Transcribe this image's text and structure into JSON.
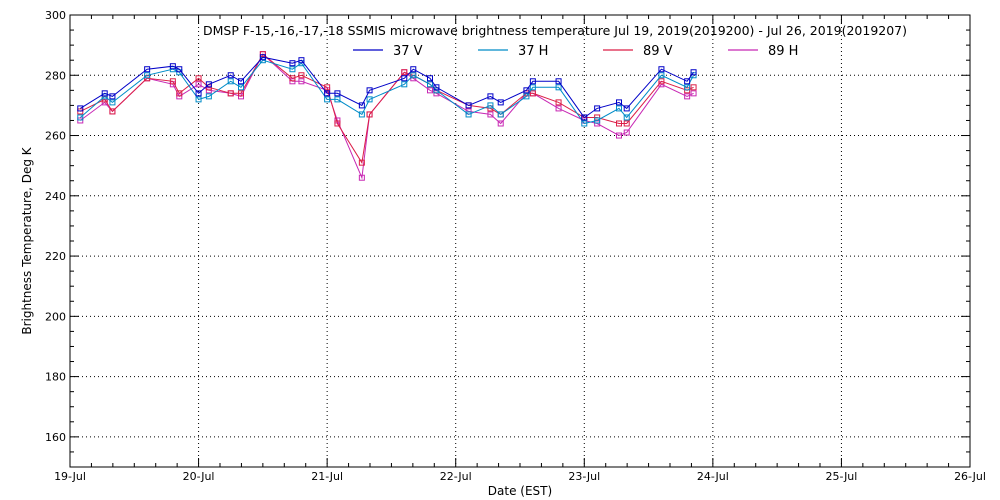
{
  "chart_data": {
    "type": "line",
    "title": "DMSP F-15,-16,-17,-18 SSMIS microwave brightness temperature Jul 19, 2019(2019200) - Jul 26, 2019(2019207)",
    "xlabel": "Date (EST)",
    "ylabel": "Brightness Temperature, Deg K",
    "xlim": [
      "19-Jul",
      "26-Jul"
    ],
    "ylim": [
      150,
      300
    ],
    "x_ticks": [
      "19-Jul",
      "20-Jul",
      "21-Jul",
      "22-Jul",
      "23-Jul",
      "24-Jul",
      "25-Jul",
      "26-Jul"
    ],
    "y_ticks": [
      160,
      180,
      200,
      220,
      240,
      260,
      280,
      300
    ],
    "grid": true,
    "legend_position": "top",
    "x_unit": "days after 19-Jul 00:00",
    "x": [
      0.08,
      0.27,
      0.33,
      0.6,
      0.8,
      0.85,
      1.0,
      1.08,
      1.25,
      1.33,
      1.5,
      1.73,
      1.8,
      2.0,
      2.08,
      2.27,
      2.33,
      2.6,
      2.67,
      2.8,
      2.85,
      3.1,
      3.27,
      3.35,
      3.55,
      3.6,
      3.8,
      4.0,
      4.1,
      4.27,
      4.33,
      4.6,
      4.8,
      4.85
    ],
    "series": [
      {
        "name": "37 V",
        "color": "#0000c8",
        "values": [
          269,
          274,
          273,
          282,
          283,
          282,
          274,
          277,
          280,
          278,
          286,
          284,
          285,
          274,
          274,
          270,
          275,
          279,
          282,
          279,
          276,
          270,
          273,
          271,
          275,
          278,
          278,
          266,
          269,
          271,
          269,
          282,
          278,
          281
        ]
      },
      {
        "name": "37 H",
        "color": "#008cc8",
        "values": [
          266,
          273,
          271,
          280,
          282,
          281,
          272,
          273,
          278,
          276,
          285,
          282,
          284,
          272,
          272,
          267,
          272,
          277,
          280,
          277,
          275,
          267,
          270,
          267,
          273,
          276,
          276,
          264,
          265,
          269,
          266,
          280,
          276,
          280
        ]
      },
      {
        "name": "89 V",
        "color": "#dc1e46",
        "values": [
          268,
          272,
          268,
          279,
          278,
          274,
          279,
          276,
          274,
          274,
          287,
          279,
          280,
          276,
          264,
          251,
          267,
          281,
          280,
          277,
          275,
          270,
          269,
          267,
          274,
          274,
          271,
          266,
          266,
          264,
          264,
          278,
          275,
          276
        ]
      },
      {
        "name": "89 H",
        "color": "#c828b4",
        "values": [
          265,
          271,
          268,
          279,
          277,
          273,
          277,
          275,
          274,
          273,
          287,
          278,
          278,
          275,
          265,
          246,
          267,
          281,
          279,
          275,
          274,
          268,
          267,
          264,
          274,
          274,
          269,
          265,
          264,
          260,
          261,
          277,
          273,
          274
        ]
      }
    ]
  }
}
